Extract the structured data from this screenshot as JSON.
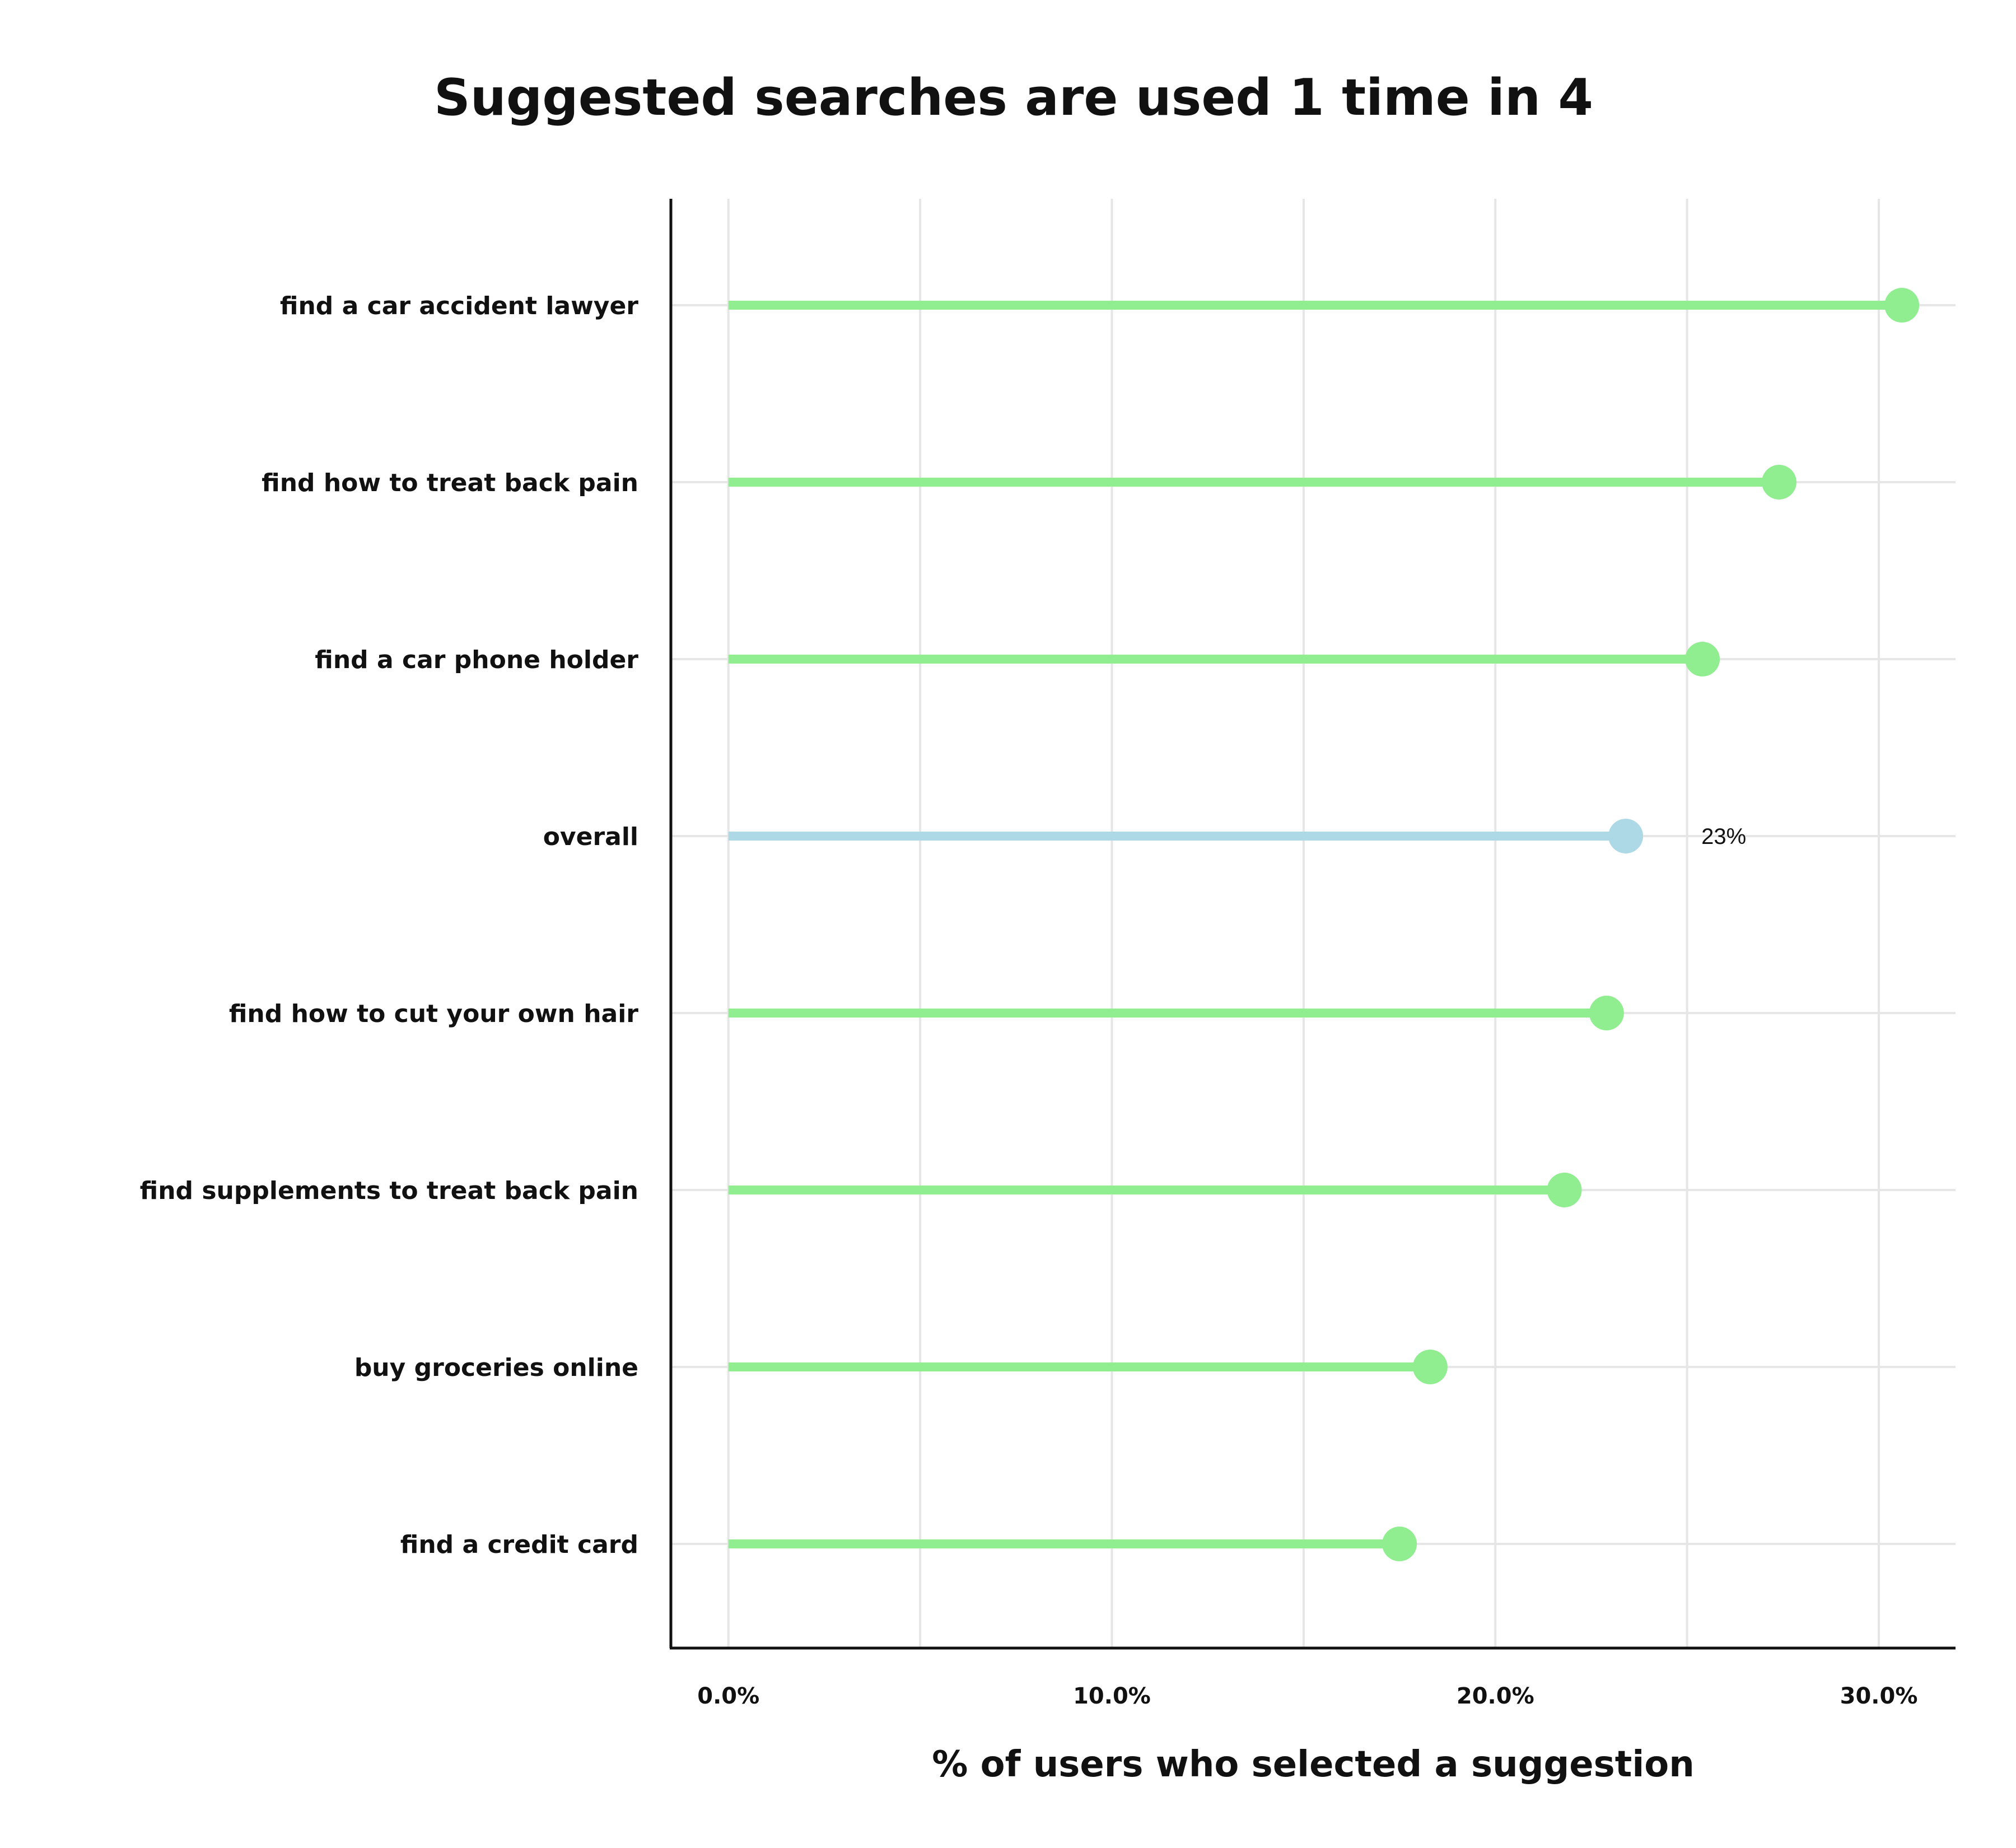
{
  "chart_data": {
    "type": "lollipop",
    "title": "Suggested searches are used 1 time in 4",
    "xlabel": "% of users who selected a suggestion",
    "ylabel": "",
    "xlim": [
      -1.5,
      32
    ],
    "xticks": [
      0,
      10,
      20,
      30
    ],
    "xtick_labels": [
      "0.0%",
      "10.0%",
      "20.0%",
      "30.0%"
    ],
    "grid": true,
    "categories": [
      "find a car accident lawyer",
      "find how to treat back pain",
      "find a car phone holder",
      "overall",
      "find how to cut your own hair",
      "find supplements to treat back pain",
      "buy groceries online",
      "find a credit card"
    ],
    "values": [
      30.6,
      27.4,
      25.4,
      23.4,
      22.9,
      21.8,
      18.3,
      17.5
    ],
    "highlight_category": "overall",
    "annotations": [
      {
        "category": "overall",
        "text": "23%"
      }
    ],
    "colors": {
      "default": "#90ee90",
      "highlight": "#add8e6"
    }
  }
}
